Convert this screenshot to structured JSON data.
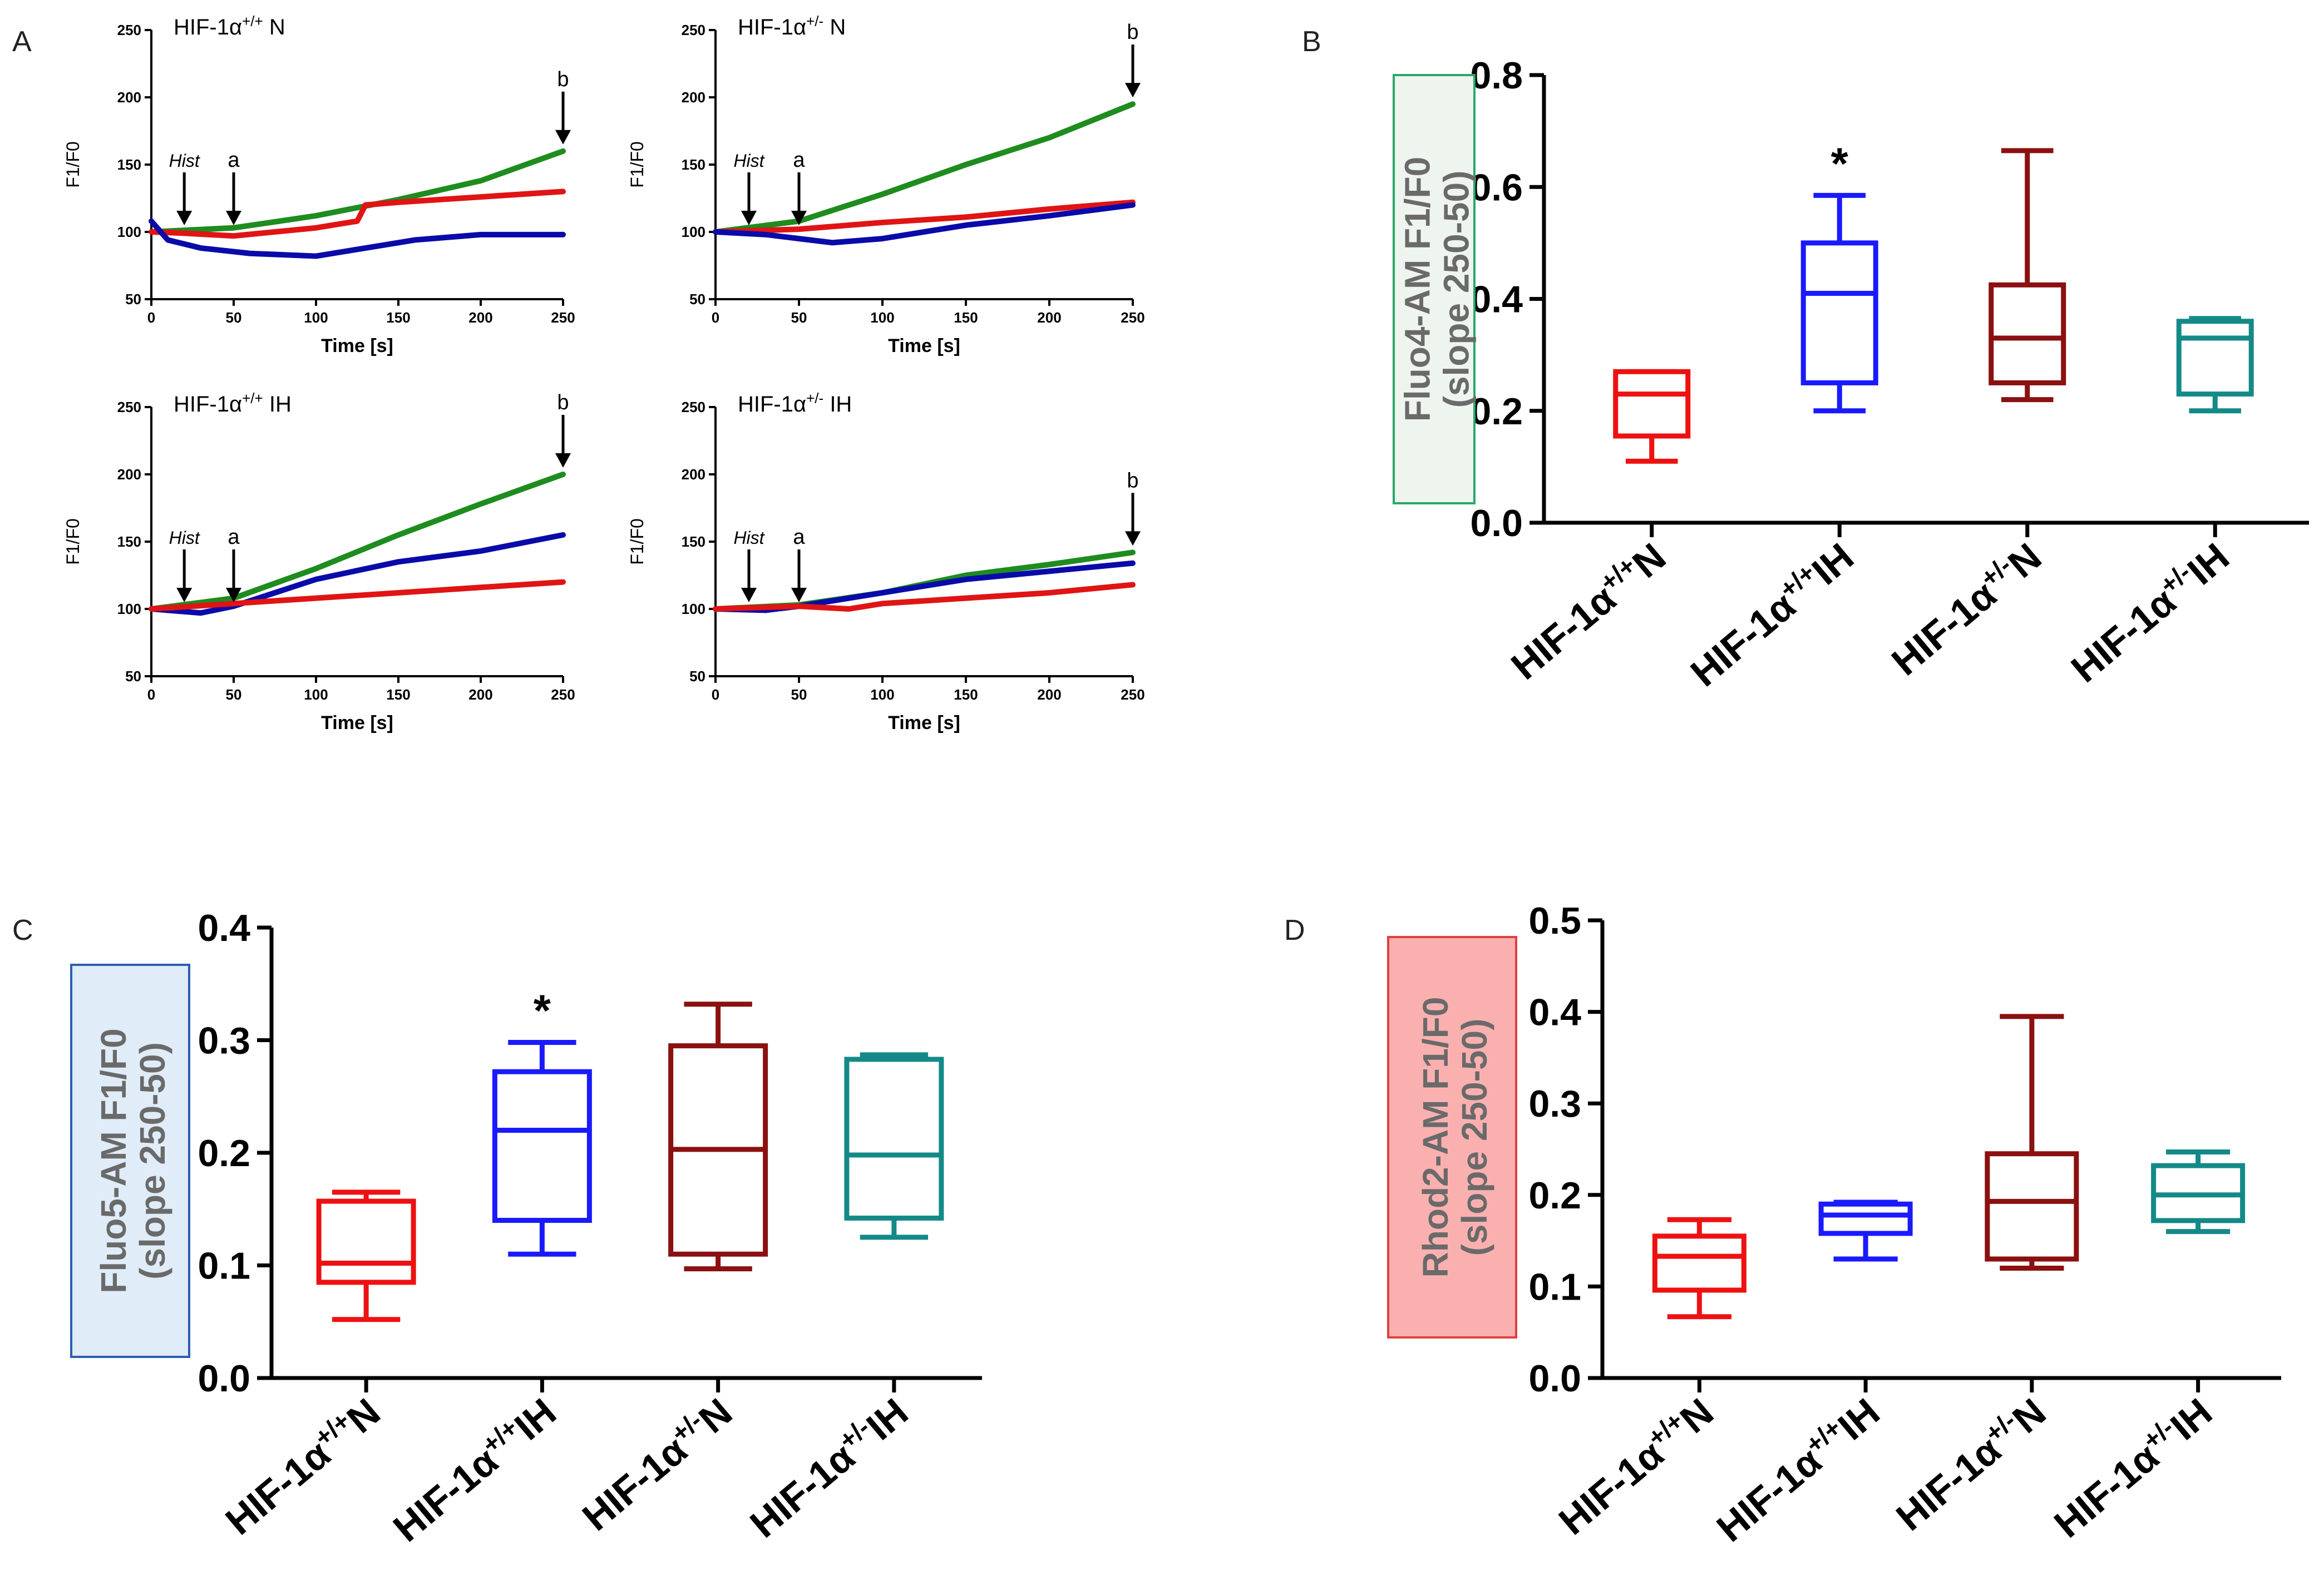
{
  "panels": {
    "A": "A",
    "B": "B",
    "C": "C",
    "D": "D"
  },
  "chart_data": [
    {
      "type": "line",
      "panel": "A",
      "title": "HIF-1α+/+ N",
      "title_base": "HIF-1α",
      "title_sup": "+/+",
      "title_suffix": " N",
      "xlabel": "Time [s]",
      "ylabel": "F1/F0",
      "xlim": [
        0,
        250
      ],
      "ylim": [
        50,
        250
      ],
      "xticks": [
        0,
        50,
        100,
        150,
        200,
        250
      ],
      "yticks": [
        50,
        100,
        150,
        200,
        250
      ],
      "annotations": [
        {
          "label": "Hist",
          "x": 20,
          "y": 100
        },
        {
          "label": "a",
          "x": 50,
          "y": 100
        },
        {
          "label": "b",
          "x": 250,
          "y": 160
        }
      ],
      "series": [
        {
          "name": "green",
          "color": "#1e8c1e",
          "x": [
            0,
            50,
            100,
            150,
            200,
            250
          ],
          "y": [
            100,
            103,
            112,
            124,
            138,
            160
          ]
        },
        {
          "name": "red",
          "color": "#e01414",
          "x": [
            0,
            20,
            50,
            100,
            125,
            130,
            150,
            200,
            250
          ],
          "y": [
            100,
            99,
            97,
            103,
            108,
            120,
            122,
            126,
            130
          ]
        },
        {
          "name": "blue",
          "color": "#0a0aaa",
          "x": [
            0,
            10,
            30,
            60,
            100,
            130,
            160,
            200,
            250
          ],
          "y": [
            108,
            94,
            88,
            84,
            82,
            88,
            94,
            98,
            98
          ]
        }
      ]
    },
    {
      "type": "line",
      "panel": "A",
      "title": "HIF-1α+/- N",
      "title_base": "HIF-1α",
      "title_sup": "+/-",
      "title_suffix": " N",
      "xlabel": "Time [s]",
      "ylabel": "F1/F0",
      "xlim": [
        0,
        250
      ],
      "ylim": [
        50,
        250
      ],
      "xticks": [
        0,
        50,
        100,
        150,
        200,
        250
      ],
      "yticks": [
        50,
        100,
        150,
        200,
        250
      ],
      "annotations": [
        {
          "label": "Hist",
          "x": 20,
          "y": 100
        },
        {
          "label": "a",
          "x": 50,
          "y": 100
        },
        {
          "label": "b",
          "x": 250,
          "y": 195
        }
      ],
      "series": [
        {
          "name": "green",
          "color": "#1e8c1e",
          "x": [
            0,
            50,
            100,
            150,
            200,
            250
          ],
          "y": [
            100,
            108,
            128,
            150,
            170,
            195
          ]
        },
        {
          "name": "red",
          "color": "#e01414",
          "x": [
            0,
            50,
            100,
            150,
            200,
            250
          ],
          "y": [
            100,
            102,
            107,
            111,
            117,
            122
          ]
        },
        {
          "name": "blue",
          "color": "#0a0aaa",
          "x": [
            0,
            30,
            50,
            70,
            100,
            150,
            200,
            250
          ],
          "y": [
            100,
            98,
            95,
            92,
            95,
            105,
            112,
            120
          ]
        }
      ]
    },
    {
      "type": "line",
      "panel": "A",
      "title": "HIF-1α+/+ IH",
      "title_base": "HIF-1α",
      "title_sup": "+/+",
      "title_suffix": " IH",
      "xlabel": "Time [s]",
      "ylabel": "F1/F0",
      "xlim": [
        0,
        250
      ],
      "ylim": [
        50,
        250
      ],
      "xticks": [
        0,
        50,
        100,
        150,
        200,
        250
      ],
      "yticks": [
        50,
        100,
        150,
        200,
        250
      ],
      "annotations": [
        {
          "label": "Hist",
          "x": 20,
          "y": 100
        },
        {
          "label": "a",
          "x": 50,
          "y": 100
        },
        {
          "label": "b",
          "x": 250,
          "y": 200
        }
      ],
      "series": [
        {
          "name": "green",
          "color": "#1e8c1e",
          "x": [
            0,
            50,
            100,
            150,
            200,
            250
          ],
          "y": [
            100,
            108,
            130,
            155,
            178,
            200
          ]
        },
        {
          "name": "blue",
          "color": "#0a0aaa",
          "x": [
            0,
            30,
            50,
            100,
            150,
            200,
            250
          ],
          "y": [
            100,
            97,
            102,
            122,
            135,
            143,
            155
          ]
        },
        {
          "name": "red",
          "color": "#e01414",
          "x": [
            0,
            50,
            100,
            150,
            200,
            250
          ],
          "y": [
            100,
            104,
            108,
            112,
            116,
            120
          ]
        }
      ]
    },
    {
      "type": "line",
      "panel": "A",
      "title": "HIF-1α+/- IH",
      "title_base": "HIF-1α",
      "title_sup": "+/-",
      "title_suffix": " IH",
      "xlabel": "Time [s]",
      "ylabel": "F1/F0",
      "xlim": [
        0,
        250
      ],
      "ylim": [
        50,
        250
      ],
      "xticks": [
        0,
        50,
        100,
        150,
        200,
        250
      ],
      "yticks": [
        50,
        100,
        150,
        200,
        250
      ],
      "annotations": [
        {
          "label": "Hist",
          "x": 20,
          "y": 100
        },
        {
          "label": "a",
          "x": 50,
          "y": 100
        },
        {
          "label": "b",
          "x": 250,
          "y": 142
        }
      ],
      "series": [
        {
          "name": "green",
          "color": "#1e8c1e",
          "x": [
            0,
            50,
            100,
            150,
            200,
            250
          ],
          "y": [
            100,
            103,
            112,
            125,
            133,
            142
          ]
        },
        {
          "name": "blue",
          "color": "#0a0aaa",
          "x": [
            0,
            30,
            50,
            100,
            150,
            200,
            250
          ],
          "y": [
            100,
            99,
            102,
            112,
            122,
            128,
            134
          ]
        },
        {
          "name": "red",
          "color": "#e01414",
          "x": [
            0,
            50,
            80,
            100,
            150,
            200,
            250
          ],
          "y": [
            100,
            102,
            100,
            104,
            108,
            112,
            118
          ]
        }
      ]
    },
    {
      "type": "box",
      "panel": "B",
      "ylabel_line1": "Fluo4-AM F1/F0",
      "ylabel_line2": "(slope 250-50)",
      "ylabel_box_fill": "#eef4ee",
      "ylabel_box_stroke": "#2aa86a",
      "ylim": [
        0,
        0.8
      ],
      "yticks": [
        "0.0",
        "0.2",
        "0.4",
        "0.6",
        "0.8"
      ],
      "categories": [
        {
          "base": "HIF-1α",
          "sup": "+/+",
          "suffix": "N"
        },
        {
          "base": "HIF-1α",
          "sup": "+/+",
          "suffix": "IH"
        },
        {
          "base": "HIF-1α",
          "sup": "+/-",
          "suffix": "N"
        },
        {
          "base": "HIF-1α",
          "sup": "+/-",
          "suffix": "IH"
        }
      ],
      "boxes": [
        {
          "min": 0.11,
          "q1": 0.155,
          "median": 0.23,
          "q3": 0.27,
          "max": 0.27,
          "color": "#ee1111"
        },
        {
          "min": 0.2,
          "q1": 0.25,
          "median": 0.41,
          "q3": 0.5,
          "max": 0.585,
          "color": "#1a1aff"
        },
        {
          "min": 0.22,
          "q1": 0.25,
          "median": 0.33,
          "q3": 0.425,
          "max": 0.665,
          "color": "#8b1010"
        },
        {
          "min": 0.2,
          "q1": 0.23,
          "median": 0.33,
          "q3": 0.36,
          "max": 0.365,
          "color": "#148a88"
        }
      ],
      "significance": [
        {
          "index": 1,
          "label": "*"
        }
      ]
    },
    {
      "type": "box",
      "panel": "C",
      "ylabel_line1": "Fluo5-AM F1/F0",
      "ylabel_line2": "(slope 250-50)",
      "ylabel_box_fill": "#e0ecf8",
      "ylabel_box_stroke": "#2a5fb0",
      "ylim": [
        0,
        0.4
      ],
      "yticks": [
        "0.0",
        "0.1",
        "0.2",
        "0.3",
        "0.4"
      ],
      "categories": [
        {
          "base": "HIF-1α",
          "sup": "+/+",
          "suffix": "N"
        },
        {
          "base": "HIF-1α",
          "sup": "+/+",
          "suffix": "IH"
        },
        {
          "base": "HIF-1α",
          "sup": "+/-",
          "suffix": "N"
        },
        {
          "base": "HIF-1α",
          "sup": "+/-",
          "suffix": "IH"
        }
      ],
      "boxes": [
        {
          "min": 0.052,
          "q1": 0.085,
          "median": 0.102,
          "q3": 0.157,
          "max": 0.165,
          "color": "#ee1111"
        },
        {
          "min": 0.11,
          "q1": 0.14,
          "median": 0.22,
          "q3": 0.272,
          "max": 0.298,
          "color": "#1a1aff"
        },
        {
          "min": 0.097,
          "q1": 0.11,
          "median": 0.203,
          "q3": 0.295,
          "max": 0.332,
          "color": "#8b1010"
        },
        {
          "min": 0.125,
          "q1": 0.142,
          "median": 0.198,
          "q3": 0.283,
          "max": 0.287,
          "color": "#148a88"
        }
      ],
      "significance": [
        {
          "index": 1,
          "label": "*"
        }
      ]
    },
    {
      "type": "box",
      "panel": "D",
      "ylabel_line1": "Rhod2-AM F1/F0",
      "ylabel_line2": "(slope 250-50)",
      "ylabel_box_fill": "#fbb0b0",
      "ylabel_box_stroke": "#e04040",
      "ylim": [
        0,
        0.5
      ],
      "yticks": [
        "0.0",
        "0.1",
        "0.2",
        "0.3",
        "0.4",
        "0.5"
      ],
      "categories": [
        {
          "base": "HIF-1α",
          "sup": "+/+",
          "suffix": "N"
        },
        {
          "base": "HIF-1α",
          "sup": "+/+",
          "suffix": "IH"
        },
        {
          "base": "HIF-1α",
          "sup": "+/-",
          "suffix": "N"
        },
        {
          "base": "HIF-1α",
          "sup": "+/-",
          "suffix": "IH"
        }
      ],
      "boxes": [
        {
          "min": 0.067,
          "q1": 0.096,
          "median": 0.133,
          "q3": 0.155,
          "max": 0.173,
          "color": "#ee1111"
        },
        {
          "min": 0.13,
          "q1": 0.158,
          "median": 0.178,
          "q3": 0.19,
          "max": 0.192,
          "color": "#1a1aff"
        },
        {
          "min": 0.12,
          "q1": 0.13,
          "median": 0.193,
          "q3": 0.245,
          "max": 0.395,
          "color": "#8b1010"
        },
        {
          "min": 0.16,
          "q1": 0.172,
          "median": 0.2,
          "q3": 0.232,
          "max": 0.247,
          "color": "#148a88"
        }
      ],
      "significance": []
    }
  ]
}
